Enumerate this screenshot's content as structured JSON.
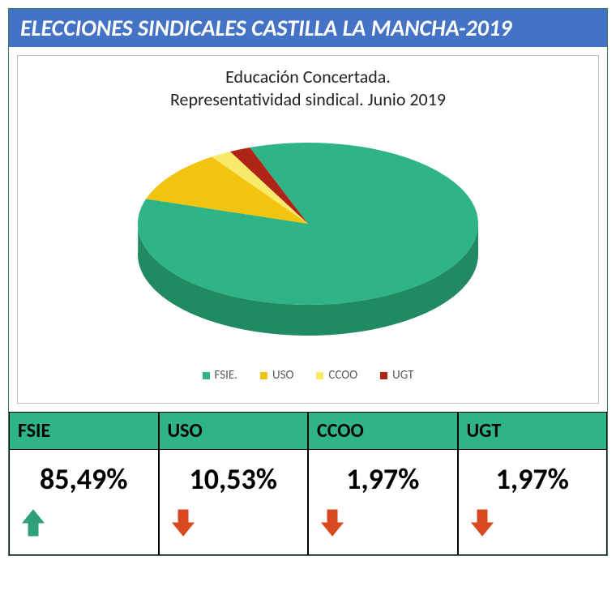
{
  "header": {
    "title": "ELECCIONES SINDICALES CASTILLA LA MANCHA-2019"
  },
  "chart": {
    "type": "pie",
    "title_line1": "Educación Concertada.",
    "title_line2": "Representatividad sindical. Junio 2019",
    "title_fontsize": 22,
    "background_color": "#ffffff",
    "border_color": "#bfbfbf",
    "depth_ratio": 0.18,
    "slices": [
      {
        "label": "FSIE.",
        "value": 85.5,
        "color": "#2fb585",
        "side_color": "#228a63"
      },
      {
        "label": "USO",
        "value": 10.5,
        "color": "#f1c40f",
        "side_color": "#b8960b"
      },
      {
        "label": "CCOO",
        "value": 2.0,
        "color": "#f7e96a",
        "side_color": "#c2b54a"
      },
      {
        "label": "UGT",
        "value": 2.0,
        "color": "#b02418",
        "side_color": "#7a1810"
      }
    ],
    "legend_fontsize": 15,
    "legend_color": "#595959"
  },
  "table": {
    "header_bg": "#2fb585",
    "columns": [
      {
        "name": "FSIE",
        "value": "85,49%",
        "trend": "up",
        "arrow_glyph": "⬆",
        "arrow_color": "#2e9f77"
      },
      {
        "name": "USO",
        "value": "10,53%",
        "trend": "down",
        "arrow_glyph": "⬇",
        "arrow_color": "#d74a1f"
      },
      {
        "name": "CCOO",
        "value": "1,97%",
        "trend": "down",
        "arrow_glyph": "⬇",
        "arrow_color": "#d74a1f"
      },
      {
        "name": "UGT",
        "value": "1,97%",
        "trend": "down",
        "arrow_glyph": "⬇",
        "arrow_color": "#d74a1f"
      }
    ]
  }
}
